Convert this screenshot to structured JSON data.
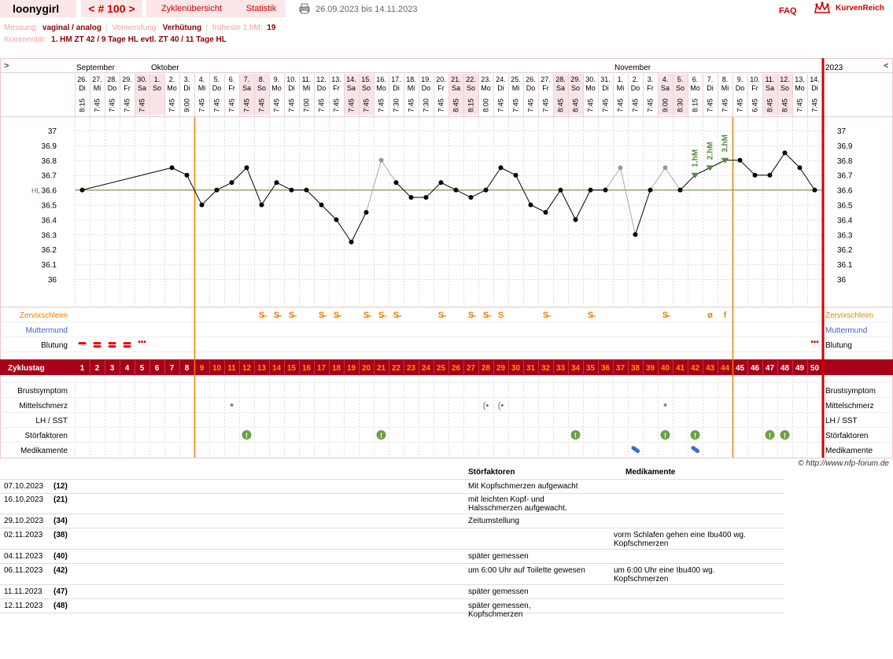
{
  "header": {
    "user": "loonygirl",
    "nav": "< # 100 >",
    "links": [
      "Zyklenübersicht",
      "Statistik"
    ],
    "date_range": "26.09.2023 bis 14.11.2023",
    "faq": "FAQ",
    "brand": "KurvenReich"
  },
  "meta": {
    "messung_label": "Messung:",
    "messung_value": "vaginal / analog",
    "verwendung_label": "Verwendung:",
    "verwendung_value": "Verhütung",
    "hm_label": "früheste 1.hM:",
    "hm_value": "19",
    "kommentar_label": "Kommentar:",
    "kommentar_value": "1. HM ZT 42 / 9 Tage HL evtl. ZT 40 / 11 Tage HL"
  },
  "colors": {
    "accent": "#b30000",
    "orange": "#f08000",
    "green": "#5b8a3a",
    "blue": "#4060d0"
  },
  "chart_data": {
    "type": "line",
    "title": "",
    "ylabel": "",
    "ylim": [
      35.9,
      37.05
    ],
    "yticks": [
      "37",
      "36.9",
      "36.8",
      "36.7",
      "36.6",
      "36.5",
      "36.4",
      "36.3",
      "36.2",
      "36.1",
      "36"
    ],
    "hl_label": "HL",
    "hl_value": 36.6,
    "months": [
      {
        "label": "September",
        "day": 1
      },
      {
        "label": "Oktober",
        "day": 6
      },
      {
        "label": "November",
        "day": 37
      }
    ],
    "year_label": "2023",
    "dates": [
      "26.",
      "27.",
      "28.",
      "29.",
      "30.",
      "1.",
      "2.",
      "3.",
      "4.",
      "5.",
      "6.",
      "7.",
      "8.",
      "9.",
      "10.",
      "11.",
      "12.",
      "13.",
      "14.",
      "15.",
      "16.",
      "17.",
      "18.",
      "19.",
      "20.",
      "21.",
      "22.",
      "23.",
      "24.",
      "25.",
      "26.",
      "27.",
      "28.",
      "29.",
      "30.",
      "31.",
      "1.",
      "2.",
      "3.",
      "4.",
      "5.",
      "6.",
      "7.",
      "8.",
      "9.",
      "10.",
      "11.",
      "12.",
      "13.",
      "14."
    ],
    "weekdays": [
      "Di",
      "Mi",
      "Do",
      "Fr",
      "Sa",
      "So",
      "Mo",
      "Di",
      "Mi",
      "Do",
      "Fr",
      "Sa",
      "So",
      "Mo",
      "Di",
      "Mi",
      "Do",
      "Fr",
      "Sa",
      "So",
      "Mo",
      "Di",
      "Mi",
      "Do",
      "Fr",
      "Sa",
      "So",
      "Mo",
      "Di",
      "Mi",
      "Do",
      "Fr",
      "Sa",
      "So",
      "Mo",
      "Di",
      "Mi",
      "Do",
      "Fr",
      "Sa",
      "So",
      "Mo",
      "Di",
      "Mi",
      "Do",
      "Fr",
      "Sa",
      "So",
      "Mo",
      "Di"
    ],
    "times": [
      "8:15",
      "7:45",
      "7:45",
      "7:45",
      "7:45",
      "",
      "7:45",
      "9:00",
      "7:45",
      "7:45",
      "7:45",
      "7:45",
      "7:45",
      "7:45",
      "7:45",
      "7:00",
      "7:45",
      "7:45",
      "7:45",
      "7:45",
      "7:45",
      "7:30",
      "7:45",
      "7:30",
      "7:45",
      "8:45",
      "8:15",
      "8:00",
      "7:45",
      "7:45",
      "7:45",
      "7:45",
      "8:45",
      "8:45",
      "7:45",
      "7:45",
      "7:45",
      "7:45",
      "7:45",
      "9:00",
      "8:30",
      "8:15",
      "7:45",
      "7:45",
      "7:45",
      "6:45",
      "8:45",
      "8:45",
      "7:45",
      "7:45"
    ],
    "temps": [
      36.6,
      null,
      null,
      null,
      null,
      null,
      36.75,
      36.7,
      36.5,
      36.6,
      36.65,
      36.75,
      36.5,
      36.65,
      36.6,
      36.6,
      36.5,
      36.4,
      36.25,
      36.45,
      36.8,
      36.65,
      36.55,
      36.55,
      36.65,
      36.6,
      36.55,
      36.6,
      36.75,
      36.7,
      36.5,
      36.45,
      36.6,
      36.4,
      36.6,
      36.6,
      36.75,
      36.3,
      36.6,
      36.75,
      36.6,
      36.7,
      36.75,
      36.8,
      36.8,
      36.7,
      36.7,
      36.85,
      36.75,
      36.6
    ],
    "excluded_days": [
      21,
      37,
      40
    ],
    "hm_markers": [
      {
        "label": "1.hM",
        "day": 42
      },
      {
        "label": "2.hM",
        "day": 43
      },
      {
        "label": "3.hM",
        "day": 44
      }
    ],
    "ovulation_lines": [
      9,
      45
    ],
    "mucus": [
      {
        "day": 13,
        "sym": "S̶"
      },
      {
        "day": 14,
        "sym": "S̶"
      },
      {
        "day": 15,
        "sym": "S̶"
      },
      {
        "day": 17,
        "sym": "S̶"
      },
      {
        "day": 18,
        "sym": "S̶"
      },
      {
        "day": 20,
        "sym": "S̶"
      },
      {
        "day": 21,
        "sym": "S̶"
      },
      {
        "day": 22,
        "sym": "S̶"
      },
      {
        "day": 25,
        "sym": "S̶"
      },
      {
        "day": 27,
        "sym": "S̶"
      },
      {
        "day": 28,
        "sym": "S̶"
      },
      {
        "day": 29,
        "sym": "S"
      },
      {
        "day": 32,
        "sym": "S̶"
      },
      {
        "day": 35,
        "sym": "S̶"
      },
      {
        "day": 40,
        "sym": "S̶"
      },
      {
        "day": 43,
        "sym": "ø"
      },
      {
        "day": 44,
        "sym": "f"
      }
    ],
    "bleeding_days": [
      1,
      2,
      3,
      4
    ],
    "spotting_days": [
      5,
      50
    ],
    "mittelschmerz_days": [
      11,
      28,
      29,
      40
    ],
    "stoerfaktor_days": [
      12,
      21,
      34,
      40,
      42,
      47,
      48
    ],
    "medikament_days": [
      38,
      42
    ],
    "rows": {
      "zervix": "Zervixschleim",
      "muttermund": "Muttermund",
      "blutung": "Blutung",
      "zyklustag": "Zyklustag",
      "brust": "Brustsymptom",
      "mittel": "Mittelschmerz",
      "lh": "LH / SST",
      "stoer": "Störfaktoren",
      "medi": "Medikamente"
    },
    "expand_left": ">",
    "expand_right": "<"
  },
  "notes": {
    "copyright": "© http://www.nfp-forum.de",
    "col_stoer": "Störfaktoren",
    "col_medi": "Medikamente",
    "entries": [
      {
        "date": "07.10.2023",
        "cycle_day": "(12)",
        "stoer": "Mit Kopfschmerzen aufgewacht",
        "medi": ""
      },
      {
        "date": "16.10.2023",
        "cycle_day": "(21)",
        "stoer": "mit leichten Kopf- und Halsschmerzen aufgewacht.",
        "medi": ""
      },
      {
        "date": "29.10.2023",
        "cycle_day": "(34)",
        "stoer": "Zeitumstellung",
        "medi": ""
      },
      {
        "date": "02.11.2023",
        "cycle_day": "(38)",
        "stoer": "",
        "medi": "vorm Schlafen gehen eine Ibu400 wg. Kopfschmerzen"
      },
      {
        "date": "04.11.2023",
        "cycle_day": "(40)",
        "stoer": "später gemessen",
        "medi": ""
      },
      {
        "date": "06.11.2023",
        "cycle_day": "(42)",
        "stoer": "um 6:00 Uhr auf Toilette gewesen",
        "medi": "um 6:00 Uhr eine Ibu400 wg. Kopfschmerzen"
      },
      {
        "date": "11.11.2023",
        "cycle_day": "(47)",
        "stoer": "später gemessen",
        "medi": ""
      },
      {
        "date": "12.11.2023",
        "cycle_day": "(48)",
        "stoer": "später gemessen, Kopfschmerzen",
        "medi": ""
      }
    ]
  }
}
